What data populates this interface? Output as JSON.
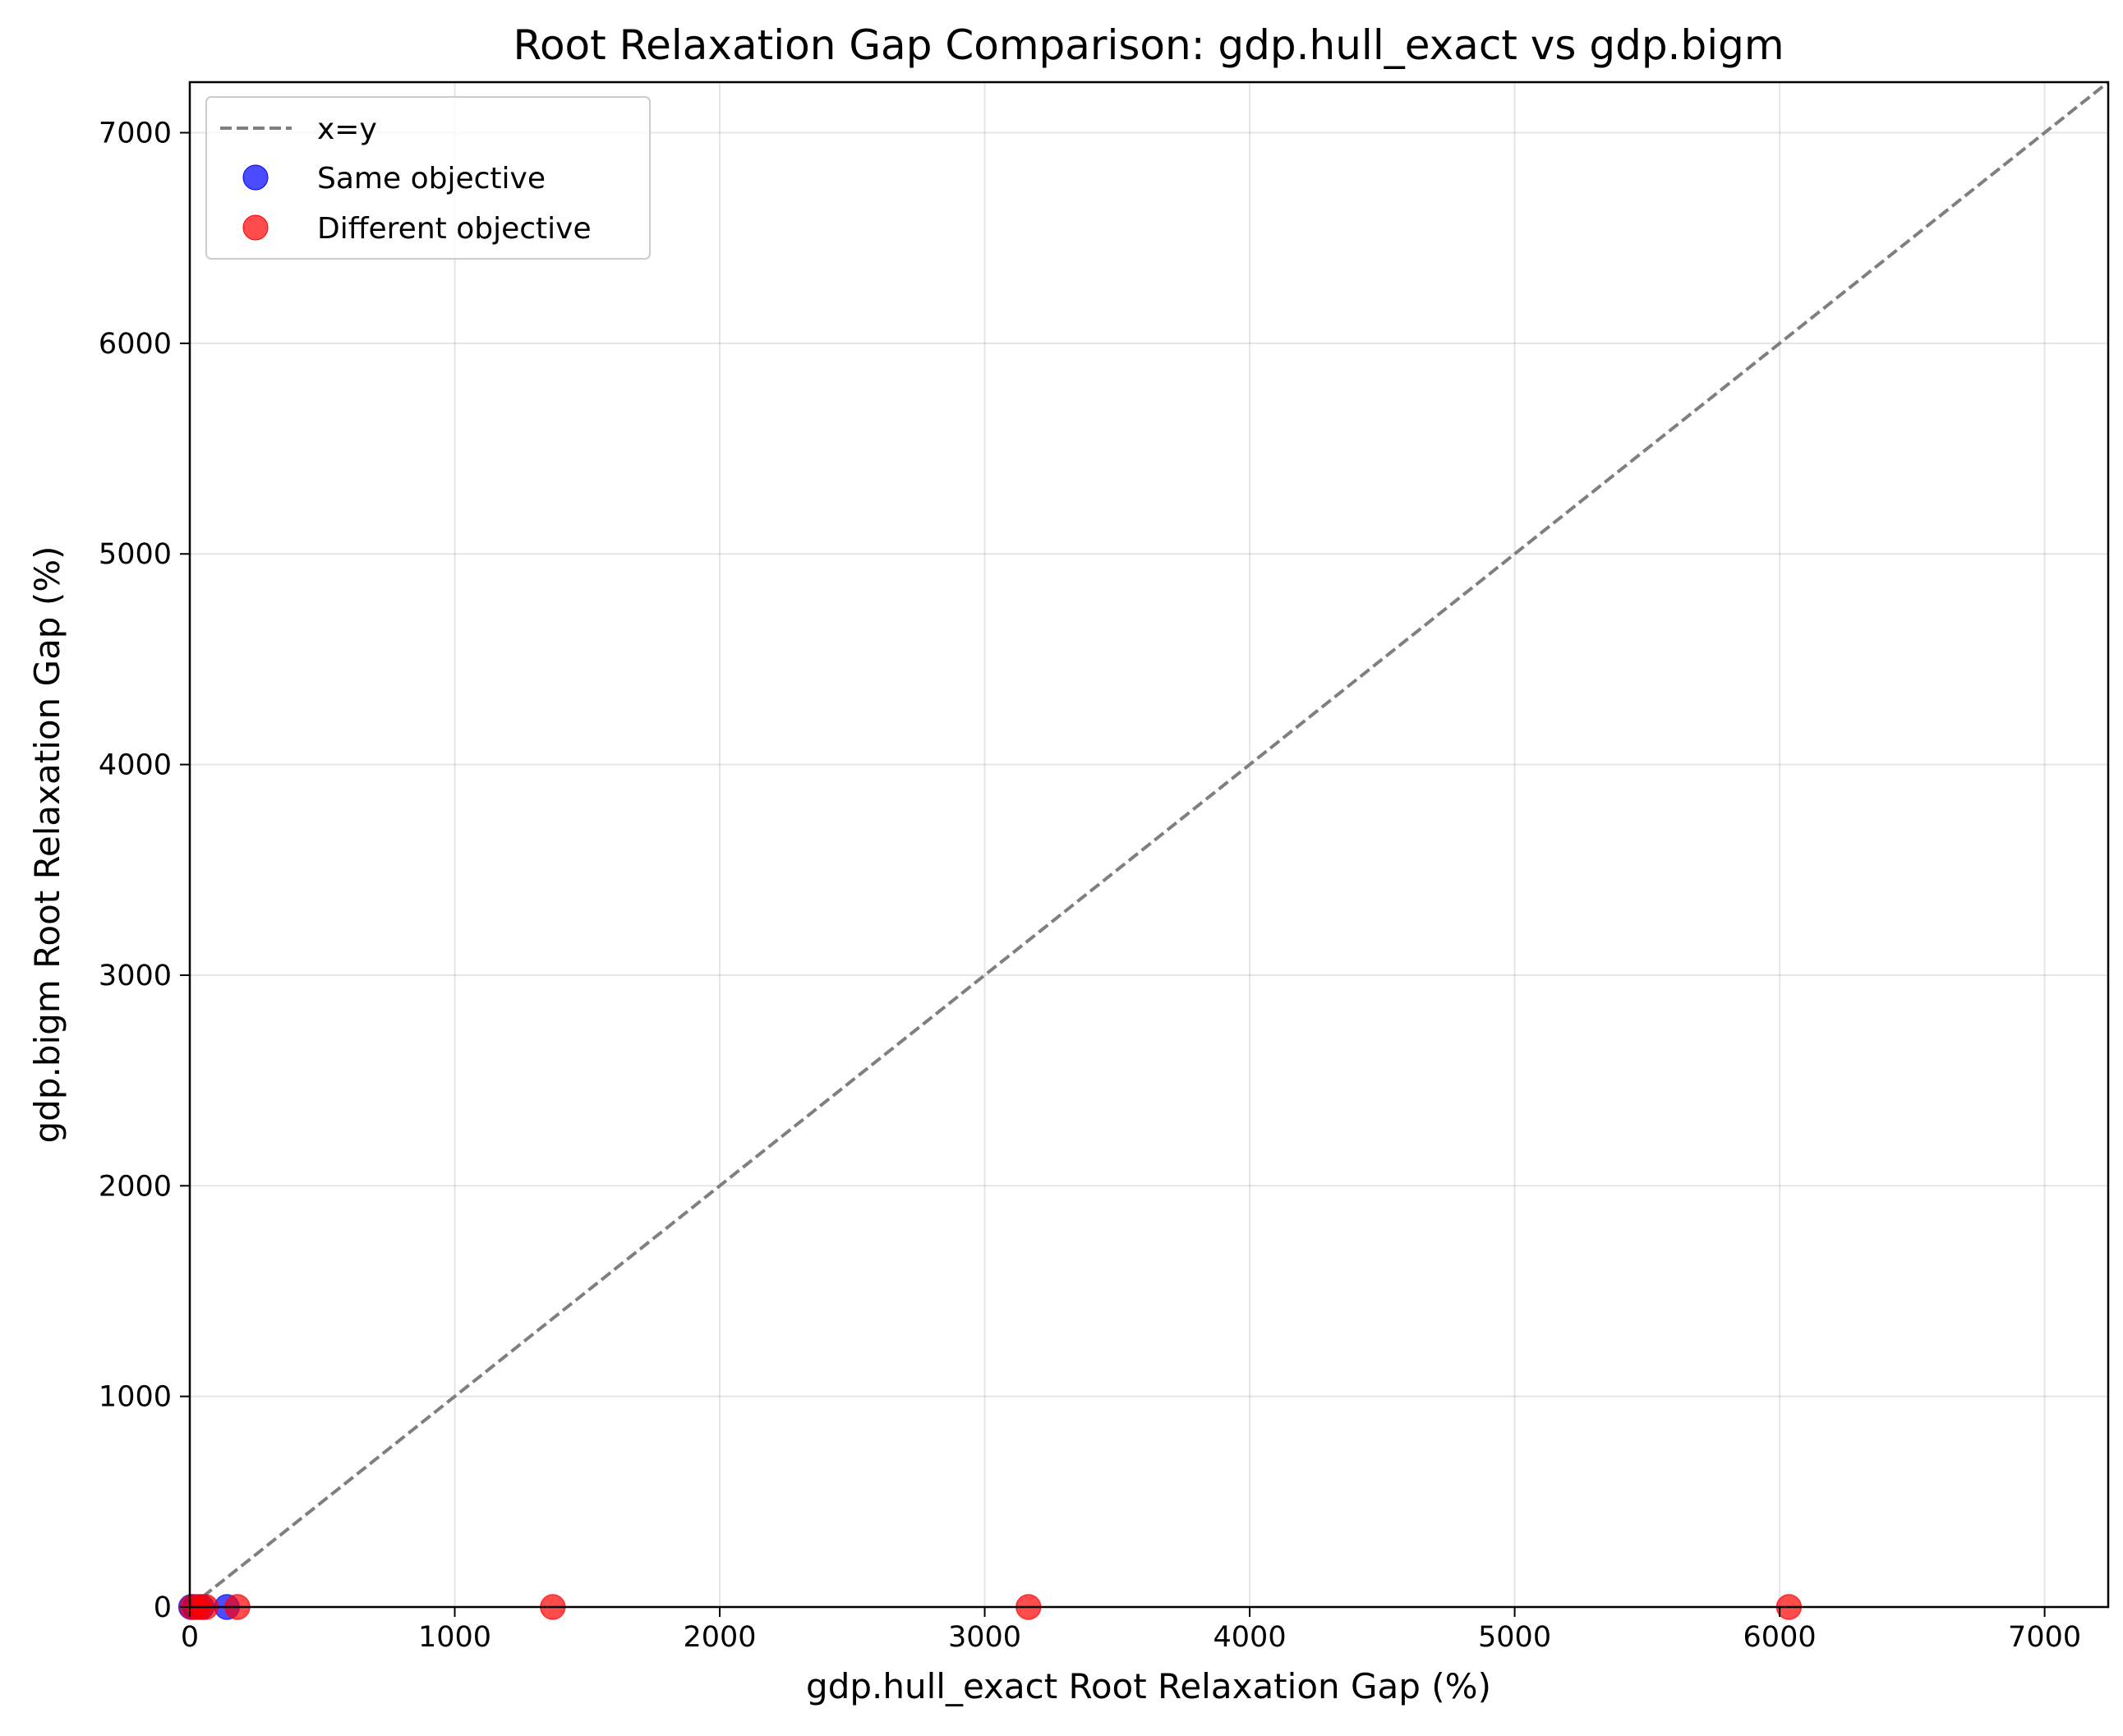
{
  "chart_data": {
    "type": "scatter",
    "title": "Root Relaxation Gap Comparison: gdp.hull_exact vs gdp.bigm",
    "xlabel": "gdp.hull_exact Root Relaxation Gap (%)",
    "ylabel": "gdp.bigm Root Relaxation Gap (%)",
    "xlim": [
      0,
      7240
    ],
    "ylim": [
      0,
      7240
    ],
    "xticks": [
      0,
      1000,
      2000,
      3000,
      4000,
      5000,
      6000,
      7000
    ],
    "yticks": [
      0,
      1000,
      2000,
      3000,
      4000,
      5000,
      6000,
      7000
    ],
    "xtick_labels": [
      "0",
      "1000",
      "2000",
      "3000",
      "4000",
      "5000",
      "6000",
      "7000"
    ],
    "ytick_labels": [
      "0",
      "1000",
      "2000",
      "3000",
      "4000",
      "5000",
      "6000",
      "7000"
    ],
    "grid": true,
    "legend_position": "top-left",
    "reference_line": {
      "name": "x=y",
      "style": "dashed",
      "color": "#7f7f7f"
    },
    "series": [
      {
        "name": "Same objective",
        "color": "#0000ff",
        "points": [
          {
            "x": 5,
            "y": 0
          },
          {
            "x": 20,
            "y": 0
          },
          {
            "x": 45,
            "y": 0
          },
          {
            "x": 140,
            "y": 0
          }
        ]
      },
      {
        "name": "Different objective",
        "color": "#ff0000",
        "points": [
          {
            "x": 10,
            "y": 0
          },
          {
            "x": 35,
            "y": 0
          },
          {
            "x": 60,
            "y": 0
          },
          {
            "x": 180,
            "y": 0
          },
          {
            "x": 1370,
            "y": 0
          },
          {
            "x": 3165,
            "y": 0
          },
          {
            "x": 6035,
            "y": 0
          }
        ]
      }
    ]
  }
}
